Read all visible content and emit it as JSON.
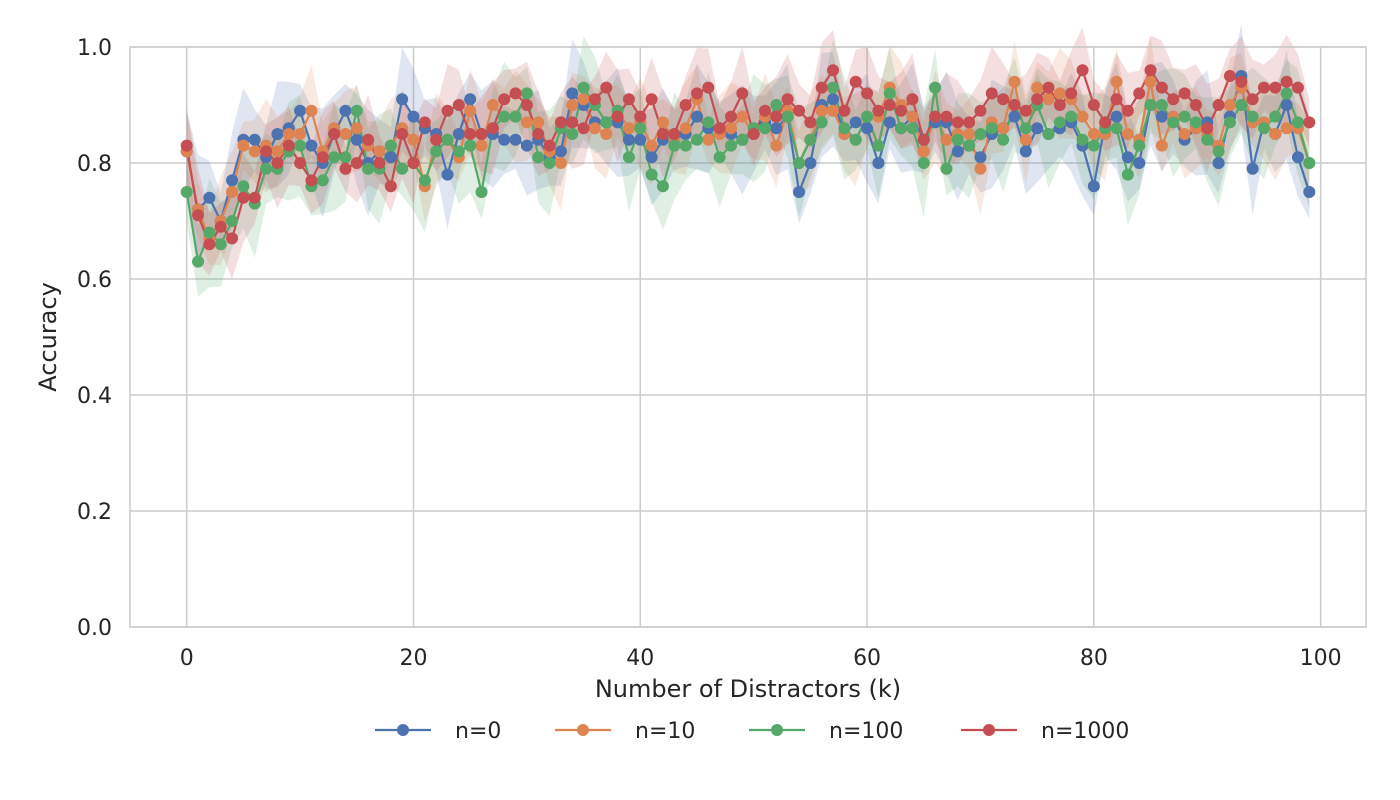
{
  "chart_data": {
    "type": "line",
    "title": "",
    "xlabel": "Number of Distractors (k)",
    "ylabel": "Accuracy",
    "xlim": [
      -5,
      104
    ],
    "ylim": [
      0.0,
      1.0
    ],
    "xticks": [
      0,
      20,
      40,
      60,
      80,
      100
    ],
    "xtick_labels": [
      "0",
      "20",
      "40",
      "60",
      "80",
      "100"
    ],
    "yticks": [
      0.0,
      0.2,
      0.4,
      0.6,
      0.8,
      1.0
    ],
    "ytick_labels": [
      "0.0",
      "0.2",
      "0.4",
      "0.6",
      "0.8",
      "1.0"
    ],
    "grid": true,
    "legend_position": "bottom-center",
    "shaded_band": "confidence interval",
    "x": [
      0,
      1,
      2,
      3,
      4,
      5,
      6,
      7,
      8,
      9,
      10,
      11,
      12,
      13,
      14,
      15,
      16,
      17,
      18,
      19,
      20,
      21,
      22,
      23,
      24,
      25,
      26,
      27,
      28,
      29,
      30,
      31,
      32,
      33,
      34,
      35,
      36,
      37,
      38,
      39,
      40,
      41,
      42,
      43,
      44,
      45,
      46,
      47,
      48,
      49,
      50,
      51,
      52,
      53,
      54,
      55,
      56,
      57,
      58,
      59,
      60,
      61,
      62,
      63,
      64,
      65,
      66,
      67,
      68,
      69,
      70,
      71,
      72,
      73,
      74,
      75,
      76,
      77,
      78,
      79,
      80,
      81,
      82,
      83,
      84,
      85,
      86,
      87,
      88,
      89,
      90,
      91,
      92,
      93,
      94,
      95,
      96,
      97,
      98,
      99
    ],
    "series": [
      {
        "name": "n=0",
        "color": "#4c72b0",
        "values": [
          0.82,
          0.72,
          0.74,
          0.7,
          0.77,
          0.84,
          0.84,
          0.81,
          0.85,
          0.86,
          0.89,
          0.83,
          0.8,
          0.85,
          0.89,
          0.84,
          0.8,
          0.82,
          0.81,
          0.91,
          0.88,
          0.86,
          0.85,
          0.78,
          0.85,
          0.91,
          0.85,
          0.85,
          0.84,
          0.84,
          0.83,
          0.84,
          0.81,
          0.82,
          0.92,
          0.9,
          0.87,
          0.87,
          0.87,
          0.84,
          0.84,
          0.81,
          0.84,
          0.84,
          0.85,
          0.88,
          0.86,
          0.86,
          0.85,
          0.84,
          0.85,
          0.87,
          0.86,
          0.88,
          0.75,
          0.8,
          0.9,
          0.91,
          0.85,
          0.87,
          0.86,
          0.8,
          0.87,
          0.86,
          0.88,
          0.84,
          0.87,
          0.87,
          0.82,
          0.83,
          0.81,
          0.85,
          0.86,
          0.88,
          0.82,
          0.86,
          0.85,
          0.86,
          0.87,
          0.83,
          0.76,
          0.87,
          0.88,
          0.81,
          0.8,
          0.9,
          0.88,
          0.88,
          0.84,
          0.86,
          0.87,
          0.8,
          0.88,
          0.95,
          0.79,
          0.87,
          0.85,
          0.9,
          0.81,
          0.75
        ],
        "band": 0.07
      },
      {
        "name": "n=10",
        "color": "#dd8452",
        "values": [
          0.82,
          0.72,
          0.67,
          0.7,
          0.75,
          0.83,
          0.82,
          0.83,
          0.82,
          0.85,
          0.85,
          0.89,
          0.82,
          0.86,
          0.85,
          0.86,
          0.83,
          0.82,
          0.83,
          0.86,
          0.84,
          0.76,
          0.84,
          0.84,
          0.81,
          0.89,
          0.83,
          0.9,
          0.88,
          0.88,
          0.87,
          0.87,
          0.82,
          0.8,
          0.9,
          0.91,
          0.86,
          0.85,
          0.89,
          0.86,
          0.87,
          0.83,
          0.87,
          0.84,
          0.86,
          0.91,
          0.84,
          0.85,
          0.86,
          0.88,
          0.85,
          0.88,
          0.83,
          0.89,
          0.8,
          0.84,
          0.89,
          0.89,
          0.85,
          0.84,
          0.88,
          0.88,
          0.93,
          0.9,
          0.88,
          0.82,
          0.88,
          0.84,
          0.85,
          0.85,
          0.79,
          0.87,
          0.86,
          0.94,
          0.84,
          0.93,
          0.91,
          0.92,
          0.91,
          0.88,
          0.85,
          0.85,
          0.94,
          0.85,
          0.84,
          0.94,
          0.83,
          0.88,
          0.85,
          0.86,
          0.85,
          0.83,
          0.9,
          0.93,
          0.87,
          0.87,
          0.85,
          0.86,
          0.86,
          0.8
        ],
        "band": 0.06
      },
      {
        "name": "n=100",
        "color": "#55a868",
        "values": [
          0.75,
          0.63,
          0.68,
          0.66,
          0.7,
          0.76,
          0.73,
          0.79,
          0.79,
          0.82,
          0.83,
          0.76,
          0.77,
          0.81,
          0.81,
          0.89,
          0.79,
          0.79,
          0.83,
          0.79,
          0.8,
          0.77,
          0.82,
          0.84,
          0.82,
          0.83,
          0.75,
          0.86,
          0.88,
          0.88,
          0.92,
          0.81,
          0.8,
          0.86,
          0.85,
          0.93,
          0.9,
          0.87,
          0.89,
          0.81,
          0.86,
          0.78,
          0.76,
          0.83,
          0.83,
          0.84,
          0.87,
          0.81,
          0.83,
          0.84,
          0.86,
          0.86,
          0.9,
          0.88,
          0.8,
          0.84,
          0.87,
          0.93,
          0.86,
          0.84,
          0.88,
          0.83,
          0.92,
          0.86,
          0.86,
          0.8,
          0.93,
          0.79,
          0.84,
          0.83,
          0.85,
          0.86,
          0.84,
          0.9,
          0.86,
          0.9,
          0.85,
          0.87,
          0.88,
          0.84,
          0.83,
          0.86,
          0.86,
          0.78,
          0.83,
          0.9,
          0.9,
          0.87,
          0.88,
          0.87,
          0.84,
          0.82,
          0.87,
          0.9,
          0.88,
          0.86,
          0.88,
          0.92,
          0.87,
          0.8
        ],
        "band": 0.07
      },
      {
        "name": "n=1000",
        "color": "#c44e52",
        "values": [
          0.83,
          0.71,
          0.66,
          0.69,
          0.67,
          0.74,
          0.74,
          0.82,
          0.8,
          0.83,
          0.8,
          0.77,
          0.81,
          0.85,
          0.79,
          0.8,
          0.84,
          0.8,
          0.76,
          0.85,
          0.8,
          0.87,
          0.84,
          0.89,
          0.9,
          0.85,
          0.85,
          0.86,
          0.91,
          0.92,
          0.9,
          0.85,
          0.83,
          0.87,
          0.87,
          0.86,
          0.91,
          0.93,
          0.88,
          0.91,
          0.88,
          0.91,
          0.85,
          0.85,
          0.9,
          0.92,
          0.93,
          0.86,
          0.88,
          0.92,
          0.85,
          0.89,
          0.88,
          0.91,
          0.89,
          0.87,
          0.93,
          0.96,
          0.89,
          0.94,
          0.92,
          0.89,
          0.9,
          0.89,
          0.91,
          0.84,
          0.88,
          0.88,
          0.87,
          0.87,
          0.89,
          0.92,
          0.91,
          0.9,
          0.89,
          0.91,
          0.93,
          0.9,
          0.92,
          0.96,
          0.9,
          0.87,
          0.91,
          0.89,
          0.92,
          0.96,
          0.93,
          0.91,
          0.92,
          0.9,
          0.86,
          0.9,
          0.95,
          0.94,
          0.91,
          0.93,
          0.93,
          0.94,
          0.93,
          0.87
        ],
        "band": 0.06
      }
    ]
  }
}
